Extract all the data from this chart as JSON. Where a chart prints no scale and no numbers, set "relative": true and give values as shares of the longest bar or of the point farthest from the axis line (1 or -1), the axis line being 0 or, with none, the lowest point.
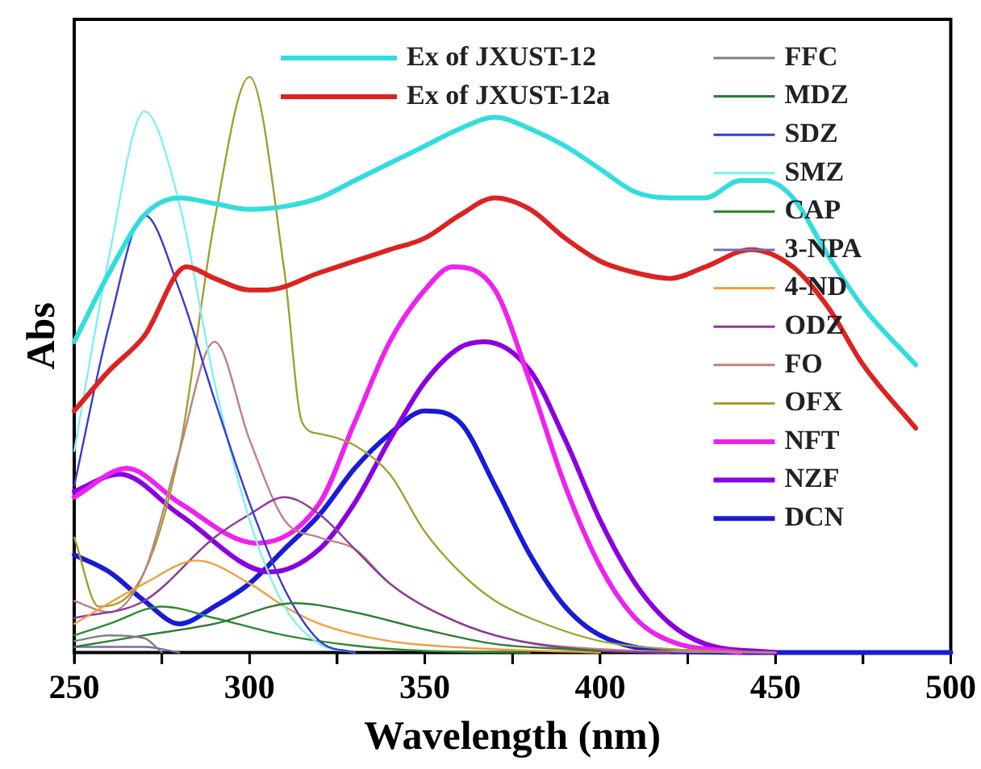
{
  "chart_data": {
    "type": "line",
    "xlabel": "Wavelength (nm)",
    "ylabel": "Abs",
    "relative": true,
    "xlim": [
      250,
      500
    ],
    "xticks": [
      250,
      {
        "value": 275,
        "label": null
      },
      300,
      {
        "value": 325,
        "label": null
      },
      350,
      {
        "value": 375,
        "label": null
      },
      400,
      {
        "value": 425,
        "label": null
      },
      450,
      {
        "value": 475,
        "label": null
      },
      500
    ],
    "grid": false,
    "legend": "top right",
    "marker": "none",
    "line_style": "solid",
    "series": [
      {
        "name": "Ex of JXUST-12",
        "color": "#33dddd",
        "x": [
          250,
          260,
          270,
          280,
          290,
          300,
          310,
          320,
          330,
          340,
          350,
          360,
          370,
          380,
          390,
          400,
          410,
          420,
          430,
          440,
          447,
          455,
          465,
          475,
          490
        ],
        "values": [
          0.54,
          0.66,
          0.76,
          0.79,
          0.78,
          0.77,
          0.775,
          0.79,
          0.82,
          0.85,
          0.88,
          0.91,
          0.93,
          0.91,
          0.88,
          0.84,
          0.8,
          0.79,
          0.79,
          0.82,
          0.82,
          0.79,
          0.69,
          0.6,
          0.5
        ]
      },
      {
        "name": "Ex of JXUST-12a",
        "color": "#dd2222",
        "x": [
          250,
          260,
          270,
          282,
          290,
          300,
          305,
          320,
          330,
          340,
          350,
          360,
          370,
          380,
          390,
          400,
          410,
          420,
          430,
          443,
          455,
          465,
          475,
          490
        ],
        "values": [
          0.42,
          0.49,
          0.55,
          0.67,
          0.65,
          0.63,
          0.63,
          0.66,
          0.68,
          0.7,
          0.72,
          0.76,
          0.79,
          0.77,
          0.72,
          0.68,
          0.66,
          0.65,
          0.67,
          0.7,
          0.67,
          0.6,
          0.5,
          0.39
        ]
      },
      {
        "name": "FFC",
        "color": "#808080",
        "x": [
          250,
          260,
          270,
          275
        ],
        "values": [
          0.02,
          0.03,
          0.025,
          0
        ]
      },
      {
        "name": "MDZ",
        "color": "#2e7d32",
        "x": [
          250,
          270,
          290,
          313,
          330,
          350,
          370,
          400
        ],
        "values": [
          0.01,
          0.03,
          0.05,
          0.086,
          0.07,
          0.04,
          0.015,
          0.003
        ]
      },
      {
        "name": "SDZ",
        "color": "#3a3ad0",
        "x": [
          250,
          260,
          270,
          280,
          290,
          300,
          310,
          320,
          330
        ],
        "values": [
          0.29,
          0.57,
          0.76,
          0.63,
          0.44,
          0.26,
          0.11,
          0.02,
          0
        ]
      },
      {
        "name": "SMZ",
        "color": "#80f0f0",
        "x": [
          250,
          260,
          270,
          280,
          290,
          300,
          310,
          320,
          330
        ],
        "values": [
          0.35,
          0.69,
          0.94,
          0.78,
          0.47,
          0.23,
          0.08,
          0.015,
          0
        ]
      },
      {
        "name": "CAP",
        "color": "#2e8b2e",
        "x": [
          250,
          260,
          275,
          290,
          310,
          330,
          350,
          380
        ],
        "values": [
          0.03,
          0.05,
          0.08,
          0.06,
          0.03,
          0.012,
          0.003,
          0
        ]
      },
      {
        "name": "3-NPA",
        "color": "#7a6ab0",
        "x": [
          250,
          270,
          280
        ],
        "values": [
          0.01,
          0.01,
          0
        ]
      },
      {
        "name": "4-ND",
        "color": "#f0a040",
        "x": [
          250,
          270,
          285,
          300,
          310,
          320,
          340,
          370,
          400
        ],
        "values": [
          0.05,
          0.12,
          0.16,
          0.12,
          0.08,
          0.05,
          0.02,
          0.006,
          0
        ]
      },
      {
        "name": "ODZ",
        "color": "#8a3a9a",
        "x": [
          250,
          270,
          290,
          300,
          310,
          320,
          330,
          340,
          350,
          370,
          400,
          420
        ],
        "values": [
          0.06,
          0.09,
          0.2,
          0.24,
          0.27,
          0.24,
          0.18,
          0.12,
          0.08,
          0.03,
          0.003,
          0
        ]
      },
      {
        "name": "FO",
        "color": "#c08080",
        "x": [
          250,
          260,
          270,
          280,
          290,
          300,
          310,
          320,
          330,
          340,
          350,
          370,
          400,
          450
        ],
        "values": [
          0.09,
          0.07,
          0.14,
          0.35,
          0.54,
          0.37,
          0.23,
          0.2,
          0.18,
          0.12,
          0.08,
          0.03,
          0.006,
          0
        ]
      },
      {
        "name": "OFX",
        "color": "#a0a030",
        "x": [
          250,
          257,
          270,
          280,
          290,
          300,
          310,
          315,
          320,
          330,
          340,
          350,
          360,
          370,
          380,
          400,
          420,
          450
        ],
        "values": [
          0.2,
          0.08,
          0.14,
          0.35,
          0.75,
          1,
          0.66,
          0.4,
          0.38,
          0.36,
          0.31,
          0.21,
          0.14,
          0.09,
          0.06,
          0.02,
          0.006,
          0
        ]
      },
      {
        "name": "NFT",
        "color": "#ee22ee",
        "x": [
          250,
          265,
          280,
          302,
          320,
          330,
          340,
          350,
          358,
          370,
          380,
          390,
          400,
          410,
          420,
          440
        ],
        "values": [
          0.27,
          0.32,
          0.26,
          0.19,
          0.26,
          0.4,
          0.54,
          0.63,
          0.67,
          0.63,
          0.47,
          0.29,
          0.15,
          0.06,
          0.02,
          0
        ]
      },
      {
        "name": "NZF",
        "color": "#8a00e0",
        "x": [
          250,
          263,
          280,
          306,
          320,
          330,
          340,
          350,
          360,
          367,
          380,
          390,
          400,
          410,
          420,
          430,
          450
        ],
        "values": [
          0.28,
          0.31,
          0.24,
          0.14,
          0.18,
          0.26,
          0.37,
          0.47,
          0.53,
          0.54,
          0.49,
          0.37,
          0.23,
          0.12,
          0.05,
          0.015,
          0
        ]
      },
      {
        "name": "DCN",
        "color": "#1a1ad8",
        "x": [
          250,
          260,
          270,
          280,
          290,
          300,
          310,
          320,
          330,
          340,
          350,
          360,
          370,
          380,
          390,
          400,
          420,
          450,
          500
        ],
        "values": [
          0.17,
          0.14,
          0.09,
          0.05,
          0.08,
          0.12,
          0.18,
          0.24,
          0.32,
          0.38,
          0.42,
          0.4,
          0.29,
          0.17,
          0.08,
          0.03,
          0.003,
          0,
          0
        ]
      }
    ]
  }
}
